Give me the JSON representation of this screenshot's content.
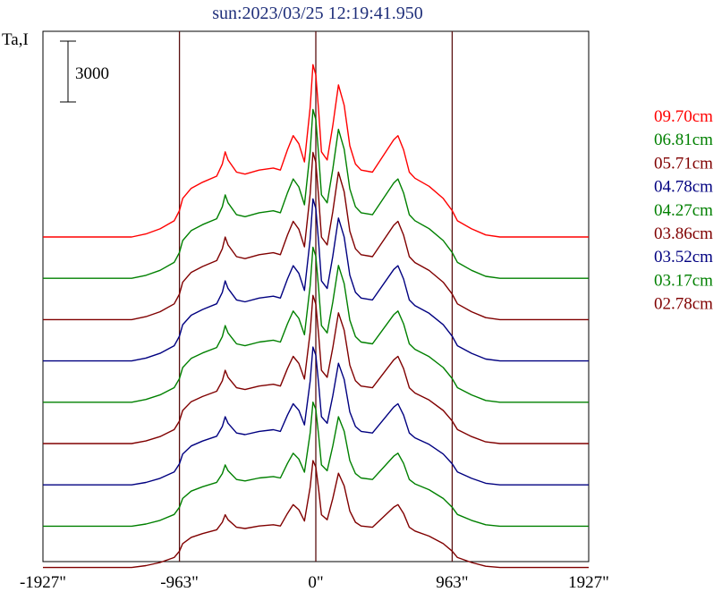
{
  "chart_data": {
    "type": "line",
    "title": "sun:2023/03/25 12:19:41.950",
    "ylabel": "Ta,I",
    "scale_bar_label": "3000",
    "scale_bar_value": 3000,
    "x_tick_labels": [
      "-1927\"",
      "-963\"",
      "0\"",
      "963\"",
      "1927\""
    ],
    "x_ticks": [
      -1927,
      -963,
      0,
      963,
      1927
    ],
    "xlim": [
      -1927,
      1927
    ],
    "vertical_lines": [
      -963,
      0,
      963
    ],
    "series": [
      {
        "name": "09.70cm",
        "color": "#ff0000",
        "scale": 1.0
      },
      {
        "name": "06.81cm",
        "color": "#008000",
        "scale": 0.98
      },
      {
        "name": "05.71cm",
        "color": "#800000",
        "scale": 0.97
      },
      {
        "name": "04.78cm",
        "color": "#000080",
        "scale": 0.94
      },
      {
        "name": "04.27cm",
        "color": "#008000",
        "scale": 0.9
      },
      {
        "name": "03.86cm",
        "color": "#800000",
        "scale": 0.86
      },
      {
        "name": "03.52cm",
        "color": "#000080",
        "scale": 0.8
      },
      {
        "name": "03.17cm",
        "color": "#008000",
        "scale": 0.72
      },
      {
        "name": "02.78cm",
        "color": "#800000",
        "scale": 0.62
      }
    ],
    "profile_x": [
      -1927,
      -1300,
      -1200,
      -1100,
      -1000,
      -963,
      -940,
      -880,
      -800,
      -700,
      -660,
      -640,
      -620,
      -560,
      -500,
      -400,
      -300,
      -250,
      -200,
      -160,
      -120,
      -80,
      -40,
      -20,
      0,
      20,
      40,
      80,
      120,
      160,
      200,
      240,
      280,
      320,
      400,
      550,
      580,
      620,
      660,
      700,
      800,
      900,
      963,
      1000,
      1100,
      1200,
      1300,
      1927
    ],
    "profile_y": [
      0,
      0,
      150,
      400,
      800,
      1300,
      1900,
      2400,
      2700,
      3000,
      3600,
      4200,
      3800,
      3200,
      3100,
      3300,
      3400,
      3300,
      4300,
      5000,
      4600,
      3700,
      6400,
      8500,
      8000,
      6200,
      4200,
      3800,
      5500,
      7500,
      6500,
      4500,
      3600,
      3300,
      3200,
      4800,
      5000,
      4300,
      3200,
      2900,
      2500,
      1900,
      1300,
      800,
      400,
      100,
      0,
      0
    ]
  }
}
